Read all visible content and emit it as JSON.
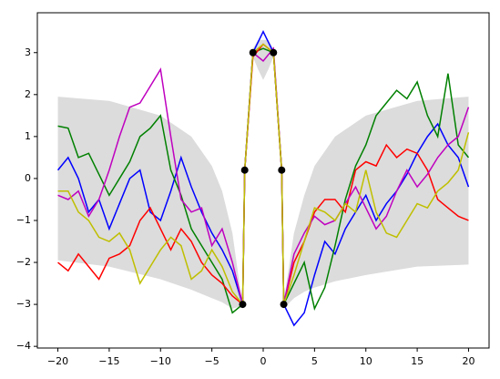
{
  "chart_data": {
    "type": "line",
    "xlim": [
      -22,
      22
    ],
    "ylim": [
      -4.04,
      3.95
    ],
    "xticks": [
      {
        "value": -20,
        "label": "−20"
      },
      {
        "value": -15,
        "label": "−15"
      },
      {
        "value": -10,
        "label": "−10"
      },
      {
        "value": -5,
        "label": "−5"
      },
      0,
      5,
      10,
      15,
      20
    ],
    "yticks": [
      {
        "value": -4,
        "label": "−4"
      },
      {
        "value": -3,
        "label": "−3"
      },
      {
        "value": -2,
        "label": "−2"
      },
      {
        "value": -1,
        "label": "−1"
      },
      0,
      1,
      2,
      3
    ],
    "band": {
      "color": "#dcdcdc",
      "x": [
        -20,
        -15,
        -10,
        -7,
        -5,
        -4,
        -3,
        -2.2,
        -2,
        -1.8,
        -1,
        -0.5,
        0,
        0.5,
        1,
        1.8,
        2,
        2.2,
        3,
        4,
        5,
        7,
        10,
        15,
        20
      ],
      "upper": [
        1.95,
        1.85,
        1.5,
        1.0,
        0.3,
        -0.3,
        -1.3,
        -2.7,
        -3.0,
        0.35,
        3.1,
        3.3,
        3.3,
        3.3,
        3.1,
        0.35,
        -3.0,
        -2.6,
        -1.3,
        -0.4,
        0.3,
        1.0,
        1.5,
        1.85,
        1.95
      ],
      "lower": [
        -1.95,
        -2.1,
        -2.4,
        -2.65,
        -2.85,
        -2.95,
        -3.1,
        -3.05,
        -3.0,
        0.1,
        2.9,
        2.6,
        2.35,
        2.6,
        2.9,
        0.1,
        -3.0,
        -3.05,
        -2.85,
        -2.7,
        -2.6,
        -2.45,
        -2.3,
        -2.1,
        -2.05
      ]
    },
    "x": [
      -20,
      -19,
      -18,
      -17,
      -16,
      -15,
      -14,
      -13,
      -12,
      -11,
      -10,
      -9,
      -8,
      -7,
      -6,
      -5,
      -4,
      -3,
      -2,
      -1.8,
      -1,
      0,
      1,
      1.8,
      2,
      3,
      4,
      5,
      6,
      7,
      8,
      9,
      10,
      11,
      12,
      13,
      14,
      15,
      16,
      17,
      18,
      19,
      20
    ],
    "series": [
      {
        "color": "#0000ff",
        "values": [
          0.2,
          0.5,
          0.0,
          -0.8,
          -0.5,
          -1.2,
          -0.6,
          0.0,
          0.2,
          -0.8,
          -1.0,
          -0.3,
          0.5,
          -0.2,
          -0.8,
          -1.3,
          -1.7,
          -2.2,
          -3,
          0.2,
          3.0,
          3.5,
          3.0,
          0.2,
          -3,
          -3.5,
          -3.2,
          -2.3,
          -1.5,
          -1.8,
          -1.2,
          -0.8,
          -0.4,
          -1.0,
          -0.6,
          -0.3,
          0.1,
          0.6,
          1.0,
          1.3,
          0.8,
          0.5,
          -0.2
        ]
      },
      {
        "color": "#008000",
        "values": [
          1.25,
          1.2,
          0.5,
          0.6,
          0.1,
          -0.4,
          0.0,
          0.4,
          1.0,
          1.2,
          1.5,
          0.2,
          -0.4,
          -1.2,
          -1.6,
          -2.0,
          -2.4,
          -3.2,
          -3,
          0.2,
          3.0,
          3.1,
          3.0,
          0.2,
          -3,
          -2.5,
          -2.0,
          -3.1,
          -2.6,
          -1.6,
          -0.5,
          0.3,
          0.8,
          1.5,
          1.8,
          2.1,
          1.9,
          2.3,
          1.5,
          1.0,
          2.5,
          0.8,
          0.5
        ]
      },
      {
        "color": "#ff0000",
        "values": [
          -2.0,
          -2.2,
          -1.8,
          -2.1,
          -2.4,
          -1.9,
          -1.8,
          -1.6,
          -1.0,
          -0.7,
          -1.2,
          -1.7,
          -1.2,
          -1.5,
          -2.0,
          -2.3,
          -2.5,
          -2.8,
          -3,
          0.2,
          2.9,
          3.2,
          3.0,
          0.2,
          -3,
          -2.0,
          -1.5,
          -0.8,
          -0.5,
          -0.5,
          -0.8,
          0.2,
          0.4,
          0.3,
          0.8,
          0.5,
          0.7,
          0.6,
          0.2,
          -0.5,
          -0.7,
          -0.9,
          -1.0
        ]
      },
      {
        "color": "#bf00bf",
        "values": [
          -0.4,
          -0.5,
          -0.3,
          -0.9,
          -0.5,
          0.2,
          1.0,
          1.7,
          1.8,
          2.2,
          2.6,
          1.0,
          -0.5,
          -0.8,
          -0.7,
          -1.6,
          -1.2,
          -2.0,
          -3,
          0.2,
          3.0,
          2.8,
          3.1,
          0.2,
          -3,
          -1.8,
          -1.3,
          -0.9,
          -1.1,
          -1.0,
          -0.6,
          -0.2,
          -0.7,
          -1.2,
          -0.9,
          -0.3,
          0.2,
          -0.2,
          0.1,
          0.5,
          0.8,
          1.0,
          1.7
        ]
      },
      {
        "color": "#bfbf00",
        "values": [
          -0.3,
          -0.3,
          -0.8,
          -1.0,
          -1.4,
          -1.5,
          -1.3,
          -1.7,
          -2.5,
          -2.1,
          -1.7,
          -1.4,
          -1.6,
          -2.4,
          -2.2,
          -1.7,
          -2.1,
          -2.7,
          -3,
          0.2,
          3.0,
          3.2,
          3.0,
          0.2,
          -3,
          -2.3,
          -1.5,
          -0.7,
          -0.8,
          -1.0,
          -0.6,
          -0.8,
          0.2,
          -0.8,
          -1.3,
          -1.4,
          -1.0,
          -0.6,
          -0.7,
          -0.3,
          -0.1,
          0.2,
          1.1
        ]
      }
    ],
    "points": {
      "color": "#000000",
      "x": [
        -2,
        -1.8,
        -1,
        1,
        1.8,
        2
      ],
      "y": [
        -3,
        0.2,
        3,
        3,
        0.2,
        -3
      ]
    }
  }
}
